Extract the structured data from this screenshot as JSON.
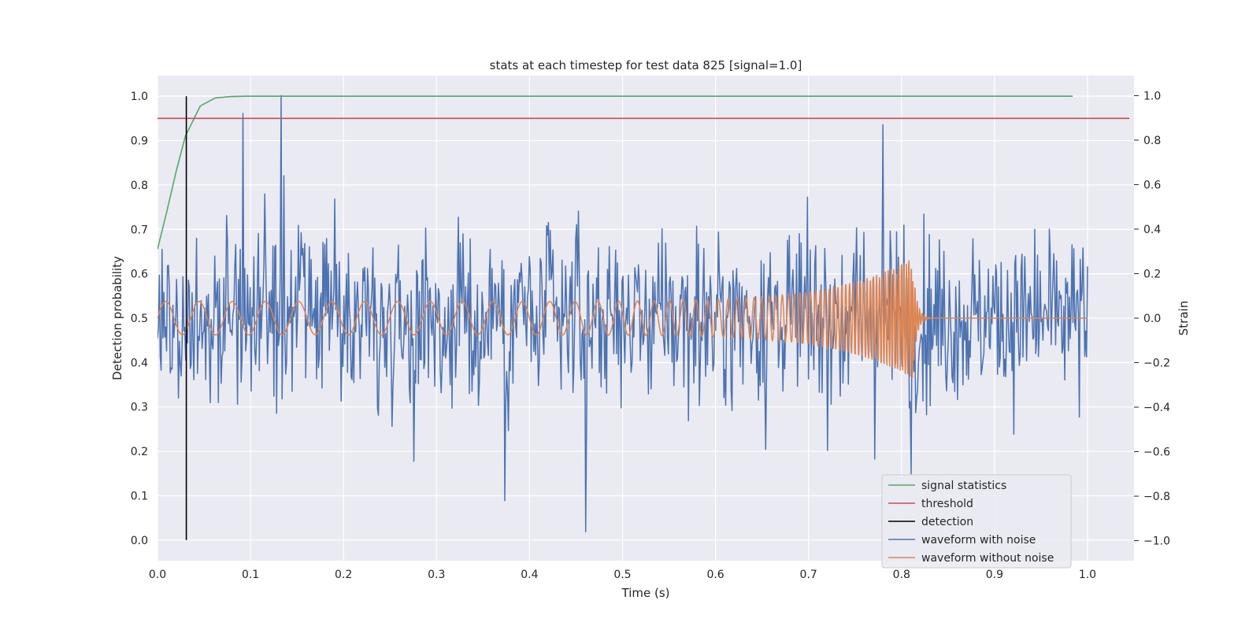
{
  "chart_data": {
    "type": "line",
    "title": "stats at each timestep for test data 825 [signal=1.0]",
    "xlabel": "Time (s)",
    "ylabel_left": "Detection probability",
    "ylabel_right": "Strain",
    "xlim": [
      0.0,
      1.05
    ],
    "ylim_left": [
      -0.0464,
      1.0464
    ],
    "ylim_right": [
      -1.09,
      1.09
    ],
    "x_ticks": [
      "0.0",
      "0.1",
      "0.2",
      "0.3",
      "0.4",
      "0.5",
      "0.6",
      "0.7",
      "0.8",
      "0.9",
      "1.0"
    ],
    "y_left_ticks": [
      "0.0",
      "0.1",
      "0.2",
      "0.3",
      "0.4",
      "0.5",
      "0.6",
      "0.7",
      "0.8",
      "0.9",
      "1.0"
    ],
    "y_right_ticks": [
      "−1.0",
      "−0.8",
      "−0.6",
      "−0.4",
      "−0.2",
      "0.0",
      "0.2",
      "0.4",
      "0.6",
      "0.8",
      "1.0"
    ],
    "grid": true,
    "legend_position": "bottom-right",
    "series": [
      {
        "name": "signal statistics",
        "axis": "left",
        "color": "#55a868",
        "x": [
          0.0,
          0.01,
          0.02,
          0.03,
          0.046,
          0.062,
          0.078,
          0.094,
          0.11,
          0.2,
          0.4,
          0.6,
          0.8,
          0.984
        ],
        "y": [
          0.655,
          0.74,
          0.83,
          0.91,
          0.978,
          0.996,
          0.999,
          1.0,
          1.0,
          1.0,
          1.0,
          1.0,
          1.0,
          1.0
        ]
      },
      {
        "name": "threshold",
        "axis": "left",
        "color": "#c44e52",
        "x": [
          0.0,
          1.045
        ],
        "y": [
          0.95,
          0.95
        ]
      },
      {
        "name": "detection",
        "axis": "left",
        "color": "#000000",
        "x": [
          0.031,
          0.031
        ],
        "y": [
          0.0,
          1.0
        ]
      },
      {
        "name": "waveform with noise",
        "axis": "right",
        "color": "#4c72b0",
        "sampling": {
          "t_start": 0.0,
          "t_end": 1.0,
          "n": 1024
        },
        "noise_amplitude_std": 0.26,
        "y_range": [
          -0.96,
          1.0
        ],
        "peaks": [
          {
            "x": 0.092,
            "y": 0.92
          },
          {
            "x": 0.133,
            "y": 1.0
          },
          {
            "x": 0.136,
            "y": 0.64
          },
          {
            "x": 0.373,
            "y": -0.82
          },
          {
            "x": 0.46,
            "y": -0.96
          },
          {
            "x": 0.78,
            "y": 0.87
          },
          {
            "x": 0.81,
            "y": -0.7
          }
        ]
      },
      {
        "name": "waveform without noise",
        "axis": "right",
        "color": "#dd8452",
        "description_type": "chirp",
        "t_start": 0.0,
        "t_merger": 0.812,
        "t_end": 1.0,
        "f_start_hz": 28,
        "f_end_hz": 400,
        "amp_start": 0.075,
        "amp_peak": 0.27,
        "ringdown_amp": 0.0
      }
    ]
  }
}
